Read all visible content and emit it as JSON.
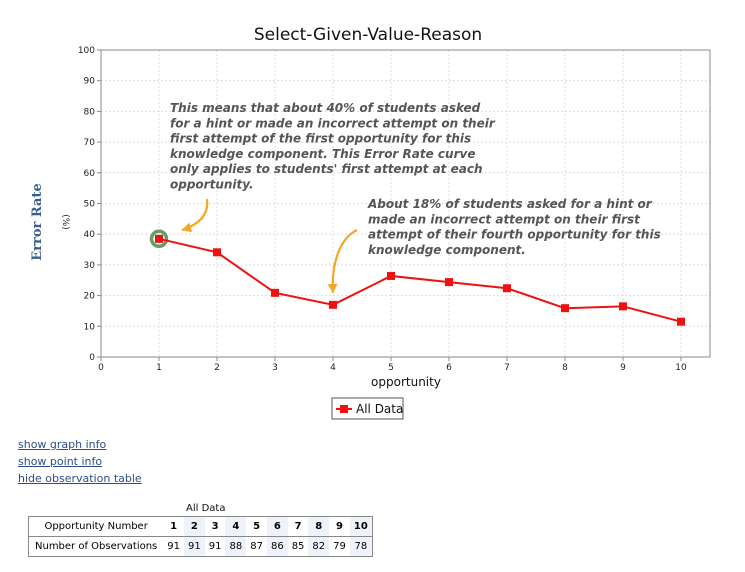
{
  "chart_data": {
    "type": "line",
    "title": "Select-Given-Value-Reason",
    "xlabel": "opportunity",
    "ylabel": "Error Rate",
    "ylabel_unit": "(%)",
    "xlim": [
      0,
      10.5
    ],
    "ylim": [
      0,
      100
    ],
    "x_ticks": [
      0,
      1,
      2,
      3,
      4,
      5,
      6,
      7,
      8,
      9,
      10
    ],
    "y_ticks": [
      0,
      10,
      20,
      30,
      40,
      50,
      60,
      70,
      80,
      90,
      100
    ],
    "grid": true,
    "legend_position": "bottom",
    "series": [
      {
        "name": "All Data",
        "color": "#ee1111",
        "x": [
          1,
          2,
          3,
          4,
          5,
          6,
          7,
          8,
          9,
          10
        ],
        "y": [
          38.5,
          34.1,
          20.9,
          17.0,
          26.4,
          24.4,
          22.4,
          15.9,
          16.5,
          11.5
        ]
      }
    ],
    "highlight_color": "#6a9a6a",
    "arrow_color": "#f5a623",
    "annotations": [
      {
        "lines": [
          "This means that about 40% of students asked",
          "for a hint or made an incorrect attempt on their",
          "first attempt of the first opportunity for this",
          "knowledge component. This Error Rate curve",
          "only applies to students' first attempt at each",
          "opportunity."
        ],
        "target_x": 1
      },
      {
        "lines": [
          "About 18% of students asked for a hint or",
          "made an incorrect attempt on their first",
          "attempt of their fourth opportunity for this",
          "knowledge component."
        ],
        "target_x": 4
      }
    ]
  },
  "links": {
    "graph_info": "show graph info",
    "point_info": "show point info",
    "observation_table": "hide observation table"
  },
  "observation_table": {
    "caption": "All Data",
    "row1_label": "Opportunity Number",
    "row2_label": "Number of Observations",
    "opportunities": [
      "1",
      "2",
      "3",
      "4",
      "5",
      "6",
      "7",
      "8",
      "9",
      "10"
    ],
    "observations": [
      "91",
      "91",
      "91",
      "88",
      "87",
      "86",
      "85",
      "82",
      "79",
      "78"
    ]
  }
}
